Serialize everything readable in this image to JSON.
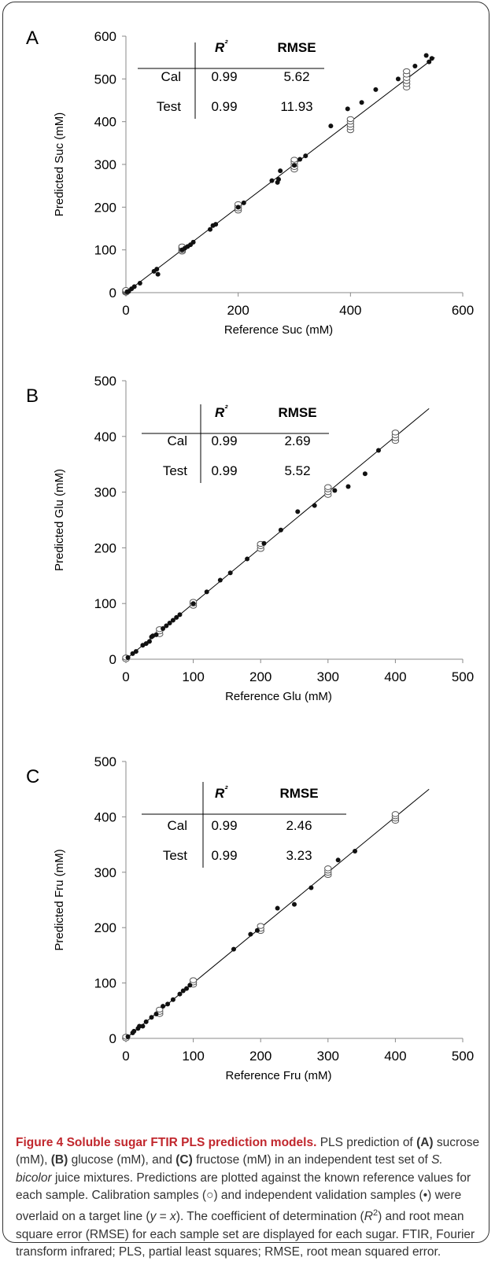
{
  "colors": {
    "axis": "#888888",
    "text": "#000000",
    "calibration_marker": "#555555",
    "validation_marker": "#111111",
    "caption_title": "#c1272d",
    "caption_text": "#333333"
  },
  "chart_data": [
    {
      "type": "scatter",
      "panel_label": "A",
      "xlabel": "Reference Suc (mM)",
      "ylabel": "Predicted Suc (mM)",
      "xlim": [
        0,
        600
      ],
      "ylim": [
        0,
        600
      ],
      "x_ticks": [
        "0",
        "200",
        "400",
        "600"
      ],
      "y_ticks": [
        "0",
        "100",
        "200",
        "300",
        "400",
        "500",
        "600"
      ],
      "target_line": [
        [
          0,
          0
        ],
        [
          550,
          550
        ]
      ],
      "stats_table": {
        "headers": [
          "R²",
          "RMSE"
        ],
        "rows": [
          {
            "set": "Cal",
            "r2": "0.99",
            "rmse": "5.62"
          },
          {
            "set": "Test",
            "r2": "0.99",
            "rmse": "11.93"
          }
        ]
      },
      "series": [
        {
          "marker": "open-circle",
          "points": [
            [
              0,
              0
            ],
            [
              0,
              2
            ],
            [
              0,
              4
            ],
            [
              0,
              6
            ],
            [
              100,
              96
            ],
            [
              100,
              99
            ],
            [
              100,
              102
            ],
            [
              100,
              105
            ],
            [
              100,
              108
            ],
            [
              200,
              192
            ],
            [
              200,
              197
            ],
            [
              200,
              202
            ],
            [
              200,
              207
            ],
            [
              300,
              288
            ],
            [
              300,
              294
            ],
            [
              300,
              300
            ],
            [
              300,
              306
            ],
            [
              300,
              311
            ],
            [
              400,
              380
            ],
            [
              400,
              387
            ],
            [
              400,
              393
            ],
            [
              400,
              400
            ],
            [
              400,
              406
            ],
            [
              500,
              480
            ],
            [
              500,
              488
            ],
            [
              500,
              495
            ],
            [
              500,
              502
            ],
            [
              500,
              510
            ],
            [
              500,
              518
            ]
          ]
        },
        {
          "marker": "filled-circle",
          "points": [
            [
              2,
              2
            ],
            [
              5,
              3
            ],
            [
              10,
              9
            ],
            [
              15,
              14
            ],
            [
              25,
              22
            ],
            [
              50,
              50
            ],
            [
              55,
              55
            ],
            [
              57,
              43
            ],
            [
              100,
              100
            ],
            [
              105,
              104
            ],
            [
              110,
              108
            ],
            [
              115,
              112
            ],
            [
              120,
              118
            ],
            [
              150,
              148
            ],
            [
              155,
              157
            ],
            [
              160,
              160
            ],
            [
              200,
              200
            ],
            [
              210,
              210
            ],
            [
              260,
              262
            ],
            [
              270,
              258
            ],
            [
              272,
              265
            ],
            [
              275,
              285
            ],
            [
              300,
              298
            ],
            [
              310,
              312
            ],
            [
              320,
              320
            ],
            [
              365,
              390
            ],
            [
              395,
              430
            ],
            [
              420,
              445
            ],
            [
              445,
              475
            ],
            [
              485,
              500
            ],
            [
              515,
              530
            ],
            [
              535,
              555
            ],
            [
              540,
              540
            ],
            [
              545,
              548
            ]
          ]
        }
      ]
    },
    {
      "type": "scatter",
      "panel_label": "B",
      "xlabel": "Reference Glu (mM)",
      "ylabel": "Predicted Glu (mM)",
      "xlim": [
        0,
        500
      ],
      "ylim": [
        0,
        500
      ],
      "x_ticks": [
        "0",
        "100",
        "200",
        "300",
        "400",
        "500"
      ],
      "y_ticks": [
        "0",
        "100",
        "200",
        "300",
        "400",
        "500"
      ],
      "target_line": [
        [
          0,
          0
        ],
        [
          450,
          450
        ]
      ],
      "stats_table": {
        "headers": [
          "R²",
          "RMSE"
        ],
        "rows": [
          {
            "set": "Cal",
            "r2": "0.99",
            "rmse": "2.69"
          },
          {
            "set": "Test",
            "r2": "0.99",
            "rmse": "5.52"
          }
        ]
      },
      "series": [
        {
          "marker": "open-circle",
          "points": [
            [
              0,
              0
            ],
            [
              0,
              3
            ],
            [
              50,
              45
            ],
            [
              50,
              50
            ],
            [
              50,
              54
            ],
            [
              100,
              96
            ],
            [
              100,
              100
            ],
            [
              100,
              103
            ],
            [
              200,
              198
            ],
            [
              200,
              203
            ],
            [
              200,
              207
            ],
            [
              300,
              295
            ],
            [
              300,
              300
            ],
            [
              300,
              305
            ],
            [
              300,
              309
            ],
            [
              400,
              392
            ],
            [
              400,
              397
            ],
            [
              400,
              402
            ],
            [
              400,
              407
            ]
          ]
        },
        {
          "marker": "filled-circle",
          "points": [
            [
              3,
              3
            ],
            [
              10,
              10
            ],
            [
              15,
              14
            ],
            [
              25,
              25
            ],
            [
              30,
              28
            ],
            [
              35,
              32
            ],
            [
              38,
              40
            ],
            [
              40,
              42
            ],
            [
              45,
              44
            ],
            [
              55,
              55
            ],
            [
              60,
              60
            ],
            [
              65,
              65
            ],
            [
              70,
              70
            ],
            [
              75,
              75
            ],
            [
              80,
              80
            ],
            [
              100,
              100
            ],
            [
              120,
              121
            ],
            [
              140,
              142
            ],
            [
              155,
              155
            ],
            [
              180,
              180
            ],
            [
              205,
              208
            ],
            [
              230,
              232
            ],
            [
              255,
              265
            ],
            [
              280,
              276
            ],
            [
              310,
              303
            ],
            [
              330,
              310
            ],
            [
              355,
              333
            ],
            [
              375,
              375
            ]
          ]
        }
      ]
    },
    {
      "type": "scatter",
      "panel_label": "C",
      "xlabel": "Reference Fru (mM)",
      "ylabel": "Predicted Fru (mM)",
      "xlim": [
        0,
        500
      ],
      "ylim": [
        0,
        500
      ],
      "x_ticks": [
        "0",
        "100",
        "200",
        "300",
        "400",
        "500"
      ],
      "y_ticks": [
        "0",
        "100",
        "200",
        "300",
        "400",
        "500"
      ],
      "target_line": [
        [
          0,
          0
        ],
        [
          450,
          450
        ]
      ],
      "stats_table": {
        "headers": [
          "R²",
          "RMSE"
        ],
        "rows": [
          {
            "set": "Cal",
            "r2": "0.99",
            "rmse": "2.46"
          },
          {
            "set": "Test",
            "r2": "0.99",
            "rmse": "3.23"
          }
        ]
      },
      "series": [
        {
          "marker": "open-circle",
          "points": [
            [
              0,
              0
            ],
            [
              0,
              3
            ],
            [
              50,
              44
            ],
            [
              50,
              48
            ],
            [
              50,
              52
            ],
            [
              100,
              97
            ],
            [
              100,
              101
            ],
            [
              100,
              105
            ],
            [
              200,
              194
            ],
            [
              200,
              198
            ],
            [
              200,
              203
            ],
            [
              300,
              295
            ],
            [
              300,
              299
            ],
            [
              300,
              303
            ],
            [
              300,
              307
            ],
            [
              400,
              393
            ],
            [
              400,
              397
            ],
            [
              400,
              401
            ],
            [
              400,
              405
            ]
          ]
        },
        {
          "marker": "filled-circle",
          "points": [
            [
              3,
              3
            ],
            [
              10,
              10
            ],
            [
              12,
              13
            ],
            [
              18,
              18
            ],
            [
              20,
              22
            ],
            [
              25,
              22
            ],
            [
              30,
              30
            ],
            [
              38,
              38
            ],
            [
              45,
              44
            ],
            [
              55,
              58
            ],
            [
              62,
              62
            ],
            [
              70,
              70
            ],
            [
              80,
              80
            ],
            [
              85,
              86
            ],
            [
              90,
              90
            ],
            [
              95,
              96
            ],
            [
              160,
              161
            ],
            [
              185,
              188
            ],
            [
              195,
              195
            ],
            [
              225,
              235
            ],
            [
              250,
              242
            ],
            [
              275,
              272
            ],
            [
              315,
              322
            ],
            [
              340,
              338
            ]
          ]
        }
      ]
    }
  ],
  "caption": {
    "title": "Figure 4 Soluble sugar FTIR PLS prediction models.",
    "segments": [
      {
        "t": " PLS prediction of ",
        "b": false
      },
      {
        "t": "(A)",
        "b": true
      },
      {
        "t": " sucrose (mM), ",
        "b": false
      },
      {
        "t": "(B)",
        "b": true
      },
      {
        "t": " glucose (mM), and ",
        "b": false
      },
      {
        "t": "(C)",
        "b": true
      },
      {
        "t": " fructose (mM) in an independent test set of ",
        "b": false
      },
      {
        "t": "S. bicolor",
        "b": false,
        "i": true
      },
      {
        "t": " juice mixtures. Predictions are plotted against the known reference values for each sample. Calibration samples (○) and independent validation samples (•) were overlaid on a target line (",
        "b": false
      },
      {
        "t": "y",
        "b": false,
        "i": true
      },
      {
        "t": " = ",
        "b": false
      },
      {
        "t": "x",
        "b": false,
        "i": true
      },
      {
        "t": "). The coefficient of determination (",
        "b": false
      },
      {
        "t": "R",
        "b": false,
        "i": true
      },
      {
        "t": "2",
        "b": false,
        "sup": true
      },
      {
        "t": ") and root mean square error (RMSE) for each sample set are displayed for each sugar. FTIR, Fourier transform infrared; PLS, partial least squares; RMSE, root mean squared error.",
        "b": false
      }
    ]
  }
}
